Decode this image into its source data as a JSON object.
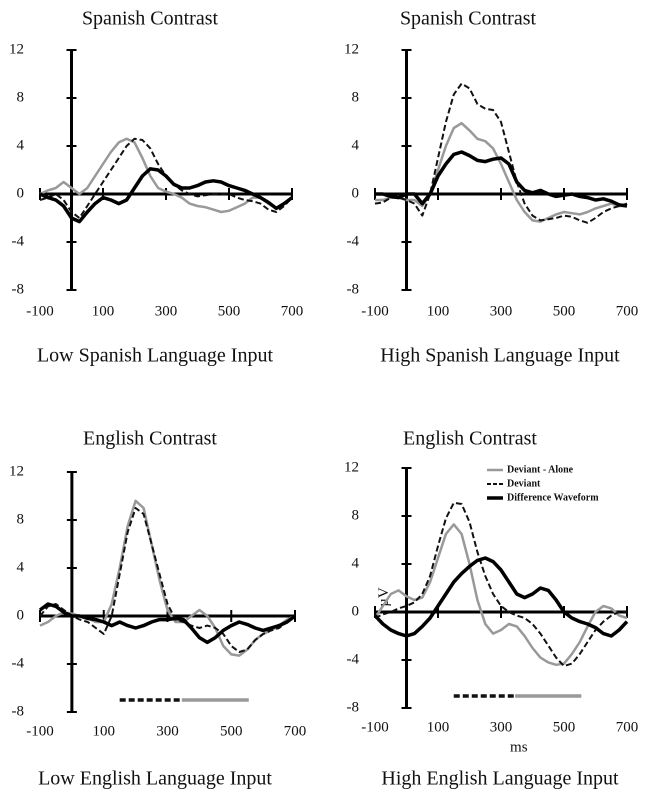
{
  "chart_data": [
    {
      "type": "line",
      "title": "Spanish Contrast",
      "caption": "Low Spanish Language Input",
      "x": [
        -100,
        -75,
        -50,
        -25,
        0,
        25,
        50,
        75,
        100,
        125,
        150,
        175,
        200,
        225,
        250,
        275,
        300,
        325,
        350,
        375,
        400,
        425,
        450,
        475,
        500,
        525,
        550,
        575,
        600,
        625,
        650,
        675,
        700
      ],
      "xlim": [
        -100,
        700
      ],
      "ylim": [
        -8,
        12
      ],
      "xticks": [
        -100,
        100,
        300,
        500,
        700
      ],
      "yticks": [
        -8,
        -4,
        0,
        4,
        8,
        12
      ],
      "series": [
        {
          "color": "#999999",
          "style": "solid",
          "values": [
            0,
            0.3,
            0.5,
            1,
            0.5,
            0,
            0.5,
            1.5,
            2.5,
            3.5,
            4.3,
            4.6,
            4.3,
            3,
            1.5,
            0.5,
            0.2,
            0,
            -0.3,
            -0.8,
            -1,
            -1.1,
            -1.3,
            -1.5,
            -1.4,
            -1.1,
            -0.8,
            -0.3,
            -0.3,
            -0.8,
            -1.2,
            -0.8,
            -0.3
          ]
        },
        {
          "color": "#111111",
          "style": "dashed",
          "values": [
            -0.5,
            -0.3,
            0,
            -0.5,
            -1.5,
            -2,
            -1,
            0,
            1,
            2,
            3,
            4,
            4.6,
            4.5,
            3.8,
            2.5,
            1.5,
            0.8,
            0.3,
            0,
            -0.2,
            -0.1,
            0,
            0,
            0,
            -0.3,
            -0.5,
            -0.6,
            -0.8,
            -1.3,
            -1.5,
            -1,
            -0.3
          ]
        },
        {
          "color": "#000000",
          "style": "bold",
          "values": [
            0,
            -0.3,
            -0.5,
            -1,
            -2,
            -2.3,
            -1.5,
            -0.8,
            -0.3,
            -0.5,
            -0.8,
            -0.5,
            0.5,
            1.5,
            2.1,
            2,
            1.5,
            0.8,
            0.5,
            0.5,
            0.7,
            1,
            1.1,
            1,
            0.7,
            0.5,
            0.3,
            0,
            -0.3,
            -0.7,
            -1.2,
            -0.8,
            -0.3
          ]
        }
      ]
    },
    {
      "type": "line",
      "title": "Spanish Contrast",
      "caption": "High Spanish Language Input",
      "x": [
        -100,
        -75,
        -50,
        -25,
        0,
        25,
        50,
        75,
        100,
        125,
        150,
        175,
        200,
        225,
        250,
        275,
        300,
        325,
        350,
        375,
        400,
        425,
        450,
        475,
        500,
        525,
        550,
        575,
        600,
        625,
        650,
        675,
        700
      ],
      "xlim": [
        -100,
        700
      ],
      "ylim": [
        -8,
        12
      ],
      "xticks": [
        -100,
        100,
        300,
        500,
        700
      ],
      "yticks": [
        -8,
        -4,
        0,
        4,
        8,
        12
      ],
      "series": [
        {
          "color": "#999999",
          "style": "solid",
          "values": [
            -0.5,
            -0.5,
            -0.3,
            -0.3,
            -0.5,
            -0.5,
            -1,
            0,
            2,
            4,
            5.5,
            5.9,
            5.3,
            4.6,
            4.4,
            3.8,
            2.5,
            1,
            -0.5,
            -1.5,
            -2.2,
            -2.3,
            -2,
            -1.7,
            -1.5,
            -1.6,
            -1.7,
            -1.5,
            -1.2,
            -1,
            -0.8,
            -1,
            -1
          ]
        },
        {
          "color": "#111111",
          "style": "dashed",
          "values": [
            -0.8,
            -0.7,
            -0.3,
            -0.3,
            -0.5,
            -0.8,
            -1.8,
            0,
            3,
            6,
            8.3,
            9.2,
            8.8,
            7.5,
            7.1,
            7,
            6,
            3.5,
            1,
            -0.8,
            -1.8,
            -2.2,
            -2.1,
            -2,
            -1.8,
            -1.9,
            -2.2,
            -2.4,
            -2,
            -1.5,
            -1.2,
            -1,
            -0.8
          ]
        },
        {
          "color": "#000000",
          "style": "bold",
          "values": [
            0,
            0,
            -0.2,
            -0.3,
            0,
            0,
            -0.8,
            0,
            1.5,
            2.5,
            3.3,
            3.5,
            3.2,
            2.8,
            2.7,
            2.9,
            3,
            2.5,
            1,
            0.3,
            0.1,
            0.3,
            0,
            -0.2,
            -0.1,
            0,
            -0.2,
            -0.3,
            -0.5,
            -0.4,
            -0.6,
            -0.9,
            -1
          ]
        }
      ]
    },
    {
      "type": "line",
      "title": "English Contrast",
      "caption": "Low English Language Input",
      "x": [
        -100,
        -75,
        -50,
        -25,
        0,
        25,
        50,
        75,
        100,
        125,
        150,
        175,
        200,
        225,
        250,
        275,
        300,
        325,
        350,
        375,
        400,
        425,
        450,
        475,
        500,
        525,
        550,
        575,
        600,
        625,
        650,
        675,
        700
      ],
      "xlim": [
        -100,
        700
      ],
      "ylim": [
        -8,
        12
      ],
      "xticks": [
        -100,
        100,
        300,
        500,
        700
      ],
      "yticks": [
        -8,
        -4,
        0,
        4,
        8,
        12
      ],
      "series": [
        {
          "color": "#999999",
          "style": "solid",
          "values": [
            -0.8,
            -0.5,
            0,
            0.3,
            0.2,
            0,
            -0.2,
            -0.5,
            -0.5,
            1,
            4,
            7.5,
            9.6,
            9,
            6,
            3,
            0.5,
            -0.5,
            -0.5,
            0,
            0.5,
            0,
            -1,
            -2.5,
            -3.2,
            -3.3,
            -2.8,
            -2,
            -1.5,
            -1.2,
            -0.8,
            -0.3,
            0
          ]
        },
        {
          "color": "#111111",
          "style": "dashed",
          "values": [
            0,
            0.8,
            1,
            0.5,
            0,
            -0.3,
            -0.5,
            -1,
            -1.5,
            0,
            3.5,
            7,
            9,
            8.5,
            6,
            3.5,
            1,
            -0.3,
            -0.5,
            -0.8,
            -1,
            -0.8,
            -1,
            -1.5,
            -2.5,
            -3,
            -2.8,
            -2,
            -1.5,
            -1.2,
            -1,
            -0.5,
            0
          ]
        },
        {
          "color": "#000000",
          "style": "bold",
          "values": [
            0.5,
            1,
            0.8,
            0.3,
            0,
            0,
            -0.2,
            -0.3,
            -0.5,
            -0.8,
            -0.5,
            -0.8,
            -1,
            -0.8,
            -0.5,
            -0.3,
            -0.3,
            -0.2,
            -0.3,
            -1,
            -1.8,
            -2.2,
            -1.8,
            -1.2,
            -0.8,
            -0.5,
            -0.7,
            -1,
            -1.2,
            -1,
            -0.8,
            -0.5,
            0
          ]
        }
      ],
      "intervals": [
        {
          "color": "#111111",
          "style": "dashed",
          "xlim": [
            150,
            345
          ],
          "y": -7
        },
        {
          "color": "#999999",
          "style": "solid",
          "xlim": [
            345,
            555
          ],
          "y": -7
        }
      ]
    },
    {
      "type": "line",
      "title": "English Contrast",
      "caption": "High English Language Input",
      "xlabel": "ms",
      "ylabel": "µV",
      "legend": "upper right",
      "x": [
        -100,
        -75,
        -50,
        -25,
        0,
        25,
        50,
        75,
        100,
        125,
        150,
        175,
        200,
        225,
        250,
        275,
        300,
        325,
        350,
        375,
        400,
        425,
        450,
        475,
        500,
        525,
        550,
        575,
        600,
        625,
        650,
        675,
        700
      ],
      "xlim": [
        -100,
        700
      ],
      "ylim": [
        -8,
        12
      ],
      "xticks": [
        -100,
        100,
        300,
        500,
        700
      ],
      "yticks": [
        -8,
        -4,
        0,
        4,
        8,
        12
      ],
      "series": [
        {
          "name": "Deviant - Alone",
          "color": "#999999",
          "style": "solid",
          "values": [
            -0.5,
            0.5,
            1.5,
            1.8,
            1.3,
            1,
            1.2,
            2.5,
            4.5,
            6.5,
            7.3,
            6.5,
            4,
            1,
            -1,
            -1.8,
            -1.5,
            -1,
            -1.2,
            -2,
            -3,
            -3.8,
            -4.2,
            -4.4,
            -4.3,
            -3.5,
            -2.5,
            -1.2,
            0,
            0.5,
            0.3,
            -0.3,
            -0.5
          ]
        },
        {
          "name": "Deviant",
          "color": "#111111",
          "style": "dashed",
          "values": [
            -0.5,
            -0.2,
            0,
            0.3,
            0.5,
            0.8,
            1.5,
            3,
            5.5,
            7.8,
            9.1,
            9,
            7.5,
            5,
            3,
            1.5,
            0.5,
            0,
            -0.3,
            -0.5,
            -1,
            -1.8,
            -2.8,
            -3.8,
            -4.5,
            -4.3,
            -3.5,
            -2.5,
            -1.5,
            -0.8,
            -0.3,
            0,
            0
          ]
        },
        {
          "name": "Difference Waveform",
          "color": "#000000",
          "style": "bold",
          "values": [
            -0.3,
            -1,
            -1.5,
            -1.8,
            -2,
            -1.8,
            -1.2,
            -0.5,
            0.5,
            1.5,
            2.5,
            3.2,
            3.8,
            4.3,
            4.5,
            4.2,
            3.5,
            2.5,
            1.5,
            1.2,
            1.5,
            2,
            1.8,
            1,
            0,
            -0.5,
            -0.8,
            -1,
            -1.3,
            -1.8,
            -2,
            -1.5,
            -0.8
          ]
        }
      ],
      "intervals": [
        {
          "color": "#111111",
          "style": "dashed",
          "xlim": [
            150,
            345
          ],
          "y": -7
        },
        {
          "color": "#999999",
          "style": "solid",
          "xlim": [
            345,
            555
          ],
          "y": -7
        }
      ]
    }
  ]
}
